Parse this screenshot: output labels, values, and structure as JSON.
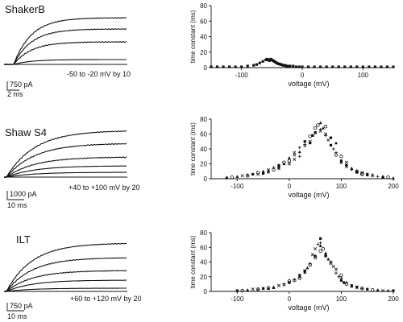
{
  "panels": [
    {
      "title": "ShakerB",
      "protocol": "-50 to -20 mV by 10",
      "scale_current": "750 pA",
      "scale_time": "2 ms"
    },
    {
      "title": "Shaw S4",
      "protocol": "+40 to +100 mV by 20",
      "scale_current": "1000 pA",
      "scale_time": "10 ms"
    },
    {
      "title": "ILT",
      "protocol": "+60 to +120 mV by 20",
      "scale_current": "750 pA",
      "scale_time": "10 ms"
    }
  ],
  "chart_data": [
    {
      "type": "scatter",
      "xlabel": "voltage  (mV)",
      "ylabel": "time constant (ms)",
      "xlim": [
        -150,
        150
      ],
      "ylim": [
        0,
        80
      ],
      "xticks": [
        -100,
        0,
        100,
        200
      ],
      "yticks": [
        0,
        20,
        40,
        60,
        80
      ],
      "x": [
        -150,
        -140,
        -130,
        -120,
        -110,
        -100,
        -90,
        -80,
        -75,
        -70,
        -65,
        -60,
        -58,
        -56,
        -54,
        -52,
        -50,
        -48,
        -46,
        -44,
        -42,
        -40,
        -38,
        -36,
        -34,
        -32,
        -30,
        -28,
        -26,
        -24,
        -22,
        -20,
        -15,
        -10,
        -5,
        0,
        10,
        20,
        30,
        40,
        50,
        60,
        70,
        80,
        90,
        100,
        110,
        120,
        130,
        140,
        150
      ],
      "y": [
        1,
        1,
        1,
        1,
        1,
        1,
        2,
        3,
        4,
        6,
        8,
        10,
        11,
        10,
        9,
        11,
        10,
        9,
        8,
        7,
        6,
        5,
        5,
        4,
        4,
        3,
        3,
        3,
        2,
        2,
        2,
        2,
        2,
        1,
        1,
        1,
        1,
        1,
        1,
        1,
        1,
        1,
        1,
        1,
        1,
        1,
        1,
        1,
        1,
        1,
        1
      ]
    },
    {
      "type": "scatter",
      "xlabel": "voltage  (mV)",
      "ylabel": "time constant (ms)",
      "xlim": [
        -150,
        200
      ],
      "ylim": [
        0,
        80
      ],
      "xticks": [
        -100,
        0,
        100,
        200
      ],
      "yticks": [
        0,
        20,
        40,
        60,
        80
      ],
      "x": [
        -120,
        -110,
        -100,
        -90,
        -80,
        -70,
        -60,
        -50,
        -40,
        -30,
        -20,
        -10,
        0,
        10,
        20,
        30,
        40,
        50,
        60,
        70,
        80,
        90,
        100,
        110,
        120,
        130,
        140,
        150,
        160,
        170,
        180,
        190,
        200,
        -60,
        -40,
        -20,
        0,
        20,
        40,
        60,
        80,
        100,
        120,
        140,
        160,
        -50,
        -30,
        -10,
        10,
        30,
        50,
        70,
        90,
        110,
        130,
        150,
        -80,
        -20,
        10,
        30,
        45,
        55,
        65,
        75,
        85,
        100,
        130,
        -40,
        0,
        20,
        40,
        50,
        60,
        70,
        90,
        110,
        140,
        180
      ],
      "y": [
        1,
        2,
        3,
        4,
        5,
        6,
        8,
        10,
        12,
        15,
        18,
        22,
        28,
        35,
        42,
        50,
        57,
        62,
        64,
        58,
        45,
        32,
        22,
        16,
        12,
        9,
        7,
        5,
        4,
        3,
        2,
        2,
        1,
        6,
        10,
        16,
        24,
        36,
        50,
        66,
        55,
        30,
        14,
        8,
        5,
        7,
        12,
        20,
        32,
        46,
        62,
        70,
        48,
        22,
        11,
        6,
        4,
        14,
        26,
        44,
        58,
        72,
        68,
        52,
        40,
        24,
        9,
        9,
        20,
        30,
        48,
        68,
        75,
        60,
        35,
        18,
        6,
        3
      ]
    },
    {
      "type": "scatter",
      "xlabel": "voltage  (mV)",
      "ylabel": "time constant (ms)",
      "xlim": [
        -150,
        200
      ],
      "ylim": [
        0,
        80
      ],
      "xticks": [
        -100,
        0,
        100,
        200
      ],
      "yticks": [
        0,
        20,
        40,
        60,
        80
      ],
      "x": [
        -100,
        -90,
        -80,
        -70,
        -60,
        -50,
        -40,
        -30,
        -20,
        -10,
        0,
        10,
        20,
        30,
        40,
        50,
        60,
        70,
        80,
        90,
        100,
        110,
        120,
        130,
        140,
        150,
        160,
        170,
        180,
        190,
        200,
        -60,
        -40,
        -20,
        0,
        20,
        40,
        60,
        80,
        100,
        120,
        140,
        -30,
        -10,
        10,
        30,
        50,
        70,
        90,
        110,
        130,
        20,
        35,
        45,
        55,
        60,
        65,
        75,
        85,
        95,
        105,
        0,
        30,
        50,
        60,
        70,
        100
      ],
      "y": [
        1,
        1,
        2,
        3,
        3,
        4,
        5,
        6,
        8,
        10,
        12,
        15,
        20,
        28,
        38,
        48,
        55,
        50,
        38,
        25,
        15,
        10,
        7,
        5,
        4,
        3,
        2,
        2,
        1,
        1,
        1,
        3,
        4,
        8,
        12,
        22,
        36,
        62,
        40,
        18,
        8,
        4,
        5,
        9,
        16,
        28,
        46,
        52,
        30,
        12,
        6,
        18,
        32,
        50,
        64,
        72,
        58,
        44,
        34,
        20,
        12,
        14,
        26,
        58,
        66,
        48,
        22
      ]
    }
  ]
}
